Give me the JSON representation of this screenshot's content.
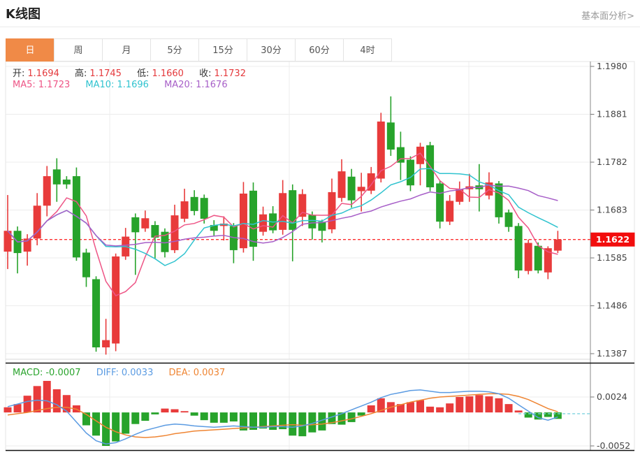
{
  "header": {
    "title": "K线图",
    "link": "基本面分析>"
  },
  "tabs": {
    "items": [
      "日",
      "周",
      "月",
      "5分",
      "15分",
      "30分",
      "60分",
      "4时"
    ],
    "active_index": 0
  },
  "info": {
    "open_label": "开:",
    "open": "1.1694",
    "high_label": "高:",
    "high": "1.1745",
    "low_label": "低:",
    "low": "1.1660",
    "close_label": "收:",
    "close": "1.1732",
    "ma5_label": "MA5:",
    "ma5": "1.1723",
    "ma10_label": "MA10:",
    "ma10": "1.1696",
    "ma20_label": "MA20:",
    "ma20": "1.1676"
  },
  "macd_info": {
    "macd_label": "MACD:",
    "macd": "-0.0007",
    "diff_label": "DIFF:",
    "diff": "0.0033",
    "dea_label": "DEA:",
    "dea": "0.0037"
  },
  "colors": {
    "up": "#e83b3b",
    "down": "#27a32b",
    "ma5": "#ee5586",
    "ma10": "#30c3cf",
    "ma20": "#a75fc8",
    "diff_line": "#5b9be2",
    "dea_line": "#ef8533",
    "dashed_price": "#fd2f2f",
    "price_badge": "#f20d0d",
    "dashed_teal": "#7fd4df",
    "tab_active": "#f08a47",
    "grid": "#ececec",
    "axis_line": "#8a8a8a",
    "axis_text": "#444444",
    "separator": "#111111"
  },
  "chart_data": {
    "type": "candlestick+macd",
    "title": "K线图 daily candlestick with MA5/MA10/MA20 and MACD",
    "price_axis_ticks": [
      1.198,
      1.1881,
      1.1782,
      1.1683,
      1.1585,
      1.1486,
      1.1387
    ],
    "current_price": 1.1622,
    "current_price_label": "1.1622",
    "macd_axis_ticks": [
      0.0024,
      -0.0052
    ],
    "macd_dashed_level": -0.0002,
    "ma_periods": [
      5,
      10,
      20
    ],
    "legend": [
      "MA5",
      "MA10",
      "MA20",
      "MACD",
      "DIFF",
      "DEA"
    ],
    "candles": [
      [
        1.1597,
        1.1714,
        1.1561,
        1.164
      ],
      [
        1.164,
        1.1649,
        1.1552,
        1.1594
      ],
      [
        1.1597,
        1.1633,
        1.1568,
        1.1624
      ],
      [
        1.1624,
        1.1718,
        1.161,
        1.1692
      ],
      [
        1.1692,
        1.1774,
        1.167,
        1.1753
      ],
      [
        1.1767,
        1.179,
        1.17,
        1.1736
      ],
      [
        1.1746,
        1.1753,
        1.1727,
        1.1736
      ],
      [
        1.1753,
        1.1771,
        1.1578,
        1.1585
      ],
      [
        1.1595,
        1.1603,
        1.1524,
        1.1544
      ],
      [
        1.154,
        1.1546,
        1.139,
        1.1399
      ],
      [
        1.1399,
        1.1458,
        1.1384,
        1.1414
      ],
      [
        1.1407,
        1.1593,
        1.1391,
        1.1587
      ],
      [
        1.1587,
        1.1646,
        1.158,
        1.1628
      ],
      [
        1.1668,
        1.1676,
        1.1549,
        1.1637
      ],
      [
        1.1645,
        1.1682,
        1.1638,
        1.1666
      ],
      [
        1.1652,
        1.166,
        1.1583,
        1.1626
      ],
      [
        1.1638,
        1.1645,
        1.1585,
        1.1596
      ],
      [
        1.16,
        1.1694,
        1.1594,
        1.1672
      ],
      [
        1.1665,
        1.1727,
        1.1658,
        1.1701
      ],
      [
        1.171,
        1.1724,
        1.1672,
        1.1681
      ],
      [
        1.1708,
        1.1715,
        1.1655,
        1.1665
      ],
      [
        1.1652,
        1.1662,
        1.163,
        1.164
      ],
      [
        1.165,
        1.167,
        1.162,
        1.1655
      ],
      [
        1.165,
        1.1656,
        1.1573,
        1.16
      ],
      [
        1.1604,
        1.1741,
        1.1595,
        1.1717
      ],
      [
        1.1723,
        1.174,
        1.1578,
        1.1607
      ],
      [
        1.1638,
        1.169,
        1.163,
        1.1674
      ],
      [
        1.1676,
        1.1691,
        1.1635,
        1.1641
      ],
      [
        1.1642,
        1.1745,
        1.1632,
        1.1718
      ],
      [
        1.1724,
        1.1736,
        1.1577,
        1.1642
      ],
      [
        1.1669,
        1.1726,
        1.165,
        1.1716
      ],
      [
        1.1673,
        1.168,
        1.1622,
        1.1645
      ],
      [
        1.1659,
        1.1663,
        1.1616,
        1.164
      ],
      [
        1.1643,
        1.1748,
        1.1635,
        1.172
      ],
      [
        1.1708,
        1.1788,
        1.17,
        1.1763
      ],
      [
        1.1752,
        1.1768,
        1.1688,
        1.1703
      ],
      [
        1.1722,
        1.176,
        1.168,
        1.1731
      ],
      [
        1.1723,
        1.1772,
        1.1716,
        1.1759
      ],
      [
        1.1748,
        1.1884,
        1.174,
        1.1866
      ],
      [
        1.1864,
        1.1918,
        1.1795,
        1.1808
      ],
      [
        1.1813,
        1.1845,
        1.1745,
        1.1781
      ],
      [
        1.1787,
        1.1794,
        1.1722,
        1.1734
      ],
      [
        1.1778,
        1.1822,
        1.1734,
        1.1814
      ],
      [
        1.1817,
        1.1824,
        1.1722,
        1.173
      ],
      [
        1.1738,
        1.1744,
        1.1645,
        1.1659
      ],
      [
        1.1659,
        1.1714,
        1.1652,
        1.1702
      ],
      [
        1.17,
        1.1742,
        1.1694,
        1.1726
      ],
      [
        1.1726,
        1.1758,
        1.17,
        1.1732
      ],
      [
        1.1734,
        1.1778,
        1.168,
        1.1726
      ],
      [
        1.1713,
        1.1761,
        1.1705,
        1.174
      ],
      [
        1.1738,
        1.1743,
        1.1655,
        1.1668
      ],
      [
        1.1678,
        1.1684,
        1.1638,
        1.1648
      ],
      [
        1.165,
        1.1656,
        1.1542,
        1.1558
      ],
      [
        1.1557,
        1.1622,
        1.155,
        1.1615
      ],
      [
        1.1609,
        1.1616,
        1.1552,
        1.1558
      ],
      [
        1.1554,
        1.1608,
        1.154,
        1.1604
      ],
      [
        1.1599,
        1.164,
        1.1594,
        1.1622
      ]
    ],
    "macd_histogram": [
      0.0008,
      0.0013,
      0.0026,
      0.0041,
      0.0049,
      0.0036,
      0.0027,
      0.0011,
      -0.002,
      -0.0036,
      -0.0052,
      -0.0045,
      -0.0033,
      -0.0018,
      -0.0013,
      -0.0003,
      0.0006,
      0.0005,
      0.0002,
      -0.0005,
      -0.0012,
      -0.0016,
      -0.0016,
      -0.0014,
      -0.0028,
      -0.0027,
      -0.0025,
      -0.0027,
      -0.0026,
      -0.0036,
      -0.0037,
      -0.0031,
      -0.0028,
      -0.0018,
      -0.0019,
      -0.0015,
      -0.0005,
      0.0011,
      0.0022,
      0.0016,
      0.0013,
      0.0016,
      0.0019,
      0.0009,
      0.0008,
      0.0014,
      0.0024,
      0.0025,
      0.0027,
      0.0025,
      0.0022,
      0.0013,
      0.0003,
      -0.0008,
      -0.0011,
      -0.0007,
      -0.001
    ],
    "diff_line": [
      0.0009,
      0.0013,
      0.0017,
      0.0019,
      0.0018,
      0.0012,
      0.0002,
      -0.0015,
      -0.0032,
      -0.0044,
      -0.0049,
      -0.0047,
      -0.0041,
      -0.0034,
      -0.0028,
      -0.0024,
      -0.002,
      -0.0018,
      -0.0019,
      -0.0021,
      -0.0022,
      -0.0023,
      -0.0022,
      -0.0021,
      -0.0022,
      -0.0023,
      -0.0023,
      -0.0022,
      -0.0022,
      -0.0023,
      -0.0021,
      -0.0017,
      -0.0012,
      -0.0007,
      -0.0002,
      0.0004,
      0.001,
      0.0016,
      0.0023,
      0.0028,
      0.0031,
      0.0034,
      0.0035,
      0.0033,
      0.0031,
      0.0031,
      0.0032,
      0.0033,
      0.0033,
      0.0032,
      0.0029,
      0.0022,
      0.0012,
      0.0002,
      -0.0008,
      -0.0012,
      -0.0007
    ],
    "dea_line": [
      -0.0004,
      -0.0002,
      0.0,
      0.0003,
      0.0006,
      0.0008,
      0.0008,
      0.0005,
      -0.0003,
      -0.0013,
      -0.0023,
      -0.003,
      -0.0035,
      -0.0038,
      -0.0039,
      -0.0038,
      -0.0036,
      -0.0033,
      -0.0031,
      -0.0029,
      -0.0028,
      -0.0027,
      -0.0026,
      -0.0025,
      -0.0024,
      -0.0023,
      -0.0022,
      -0.0021,
      -0.002,
      -0.0019,
      -0.002,
      -0.0019,
      -0.0018,
      -0.0016,
      -0.0013,
      -0.001,
      -0.0006,
      -0.0002,
      0.0003,
      0.0008,
      0.0012,
      0.0016,
      0.0019,
      0.0022,
      0.0024,
      0.0025,
      0.0026,
      0.0027,
      0.0028,
      0.0029,
      0.0029,
      0.0028,
      0.0025,
      0.002,
      0.0013,
      0.0006,
      0.0001
    ]
  }
}
